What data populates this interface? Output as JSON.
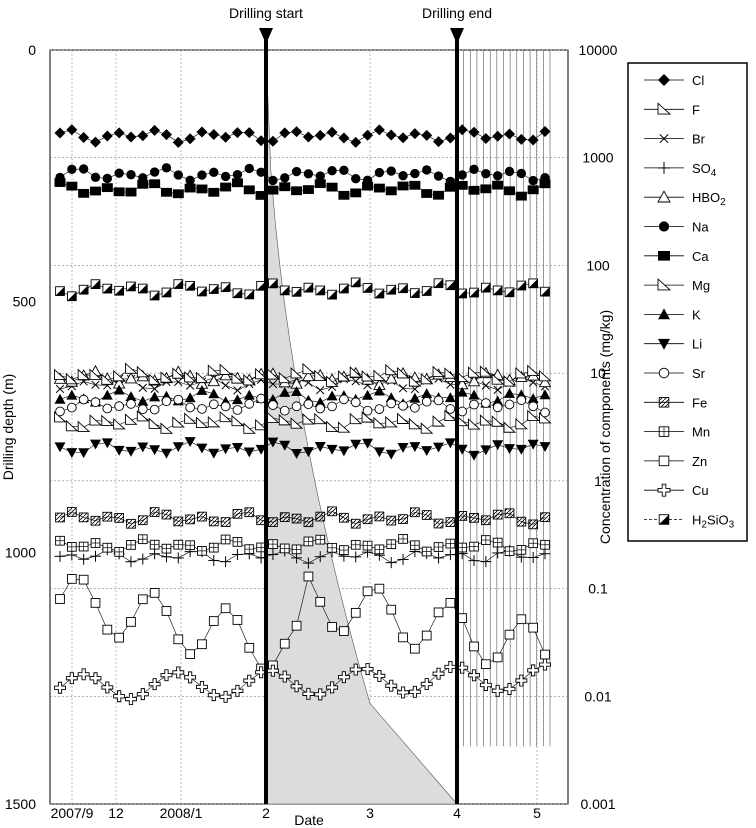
{
  "chart_data": {
    "type": "line",
    "xlabel": "Date",
    "ylabel_left": "Drilling depth (m)",
    "ylabel_right": "Concentration of components (mg/kg)",
    "x_tick_labels": [
      "2007/9",
      "12",
      "2008/1",
      "2",
      "3",
      "4",
      "5"
    ],
    "y_left_ticks": [
      "0",
      "500",
      "1000",
      "1500"
    ],
    "y_right_ticks": [
      "10000",
      "1000",
      "100",
      "10",
      "1",
      "0.1",
      "0.01",
      "0.001"
    ],
    "y_left_range": [
      0,
      1500
    ],
    "y_right_range": [
      0.001,
      10000
    ],
    "y_right_scale": "log",
    "grid": true,
    "legend_position": "right",
    "annotations": [
      {
        "label": "Drilling start",
        "x": "2"
      },
      {
        "label": "Drilling end",
        "x": "4"
      }
    ],
    "series": [
      {
        "name": "Cl",
        "marker": "diamond-filled",
        "level": 1600
      },
      {
        "name": "F",
        "marker": "triangle-right-open",
        "level": 3.5
      },
      {
        "name": "Br",
        "marker": "cross",
        "level": 8
      },
      {
        "name": "SO4",
        "marker": "plus",
        "level": 0.2
      },
      {
        "name": "HBO2",
        "marker": "triangle-open",
        "level": 9
      },
      {
        "name": "Na",
        "marker": "circle-filled",
        "level": 700
      },
      {
        "name": "Ca",
        "marker": "square-filled",
        "level": 510
      },
      {
        "name": "Mg",
        "marker": "triangle-right-open",
        "level": 9.5
      },
      {
        "name": "K",
        "marker": "triangle-filled",
        "level": 6
      },
      {
        "name": "Li",
        "marker": "triangle-down-filled",
        "level": 2
      },
      {
        "name": "Sr",
        "marker": "circle-open",
        "level": 5
      },
      {
        "name": "Fe",
        "marker": "square-hatched",
        "level": 0.45
      },
      {
        "name": "Mn",
        "marker": "square-grid",
        "level": 0.25
      },
      {
        "name": "Zn",
        "marker": "square-open",
        "level": 0.08
      },
      {
        "name": "Cu",
        "marker": "cross-open",
        "level": 0.012
      },
      {
        "name": "H2SiO3",
        "marker": "square-half-filled",
        "level": 60
      }
    ],
    "drilling_depth_profile": {
      "dates": [
        "2",
        "3",
        "4"
      ],
      "depth_reached_m": [
        0,
        1300,
        1500
      ]
    }
  }
}
